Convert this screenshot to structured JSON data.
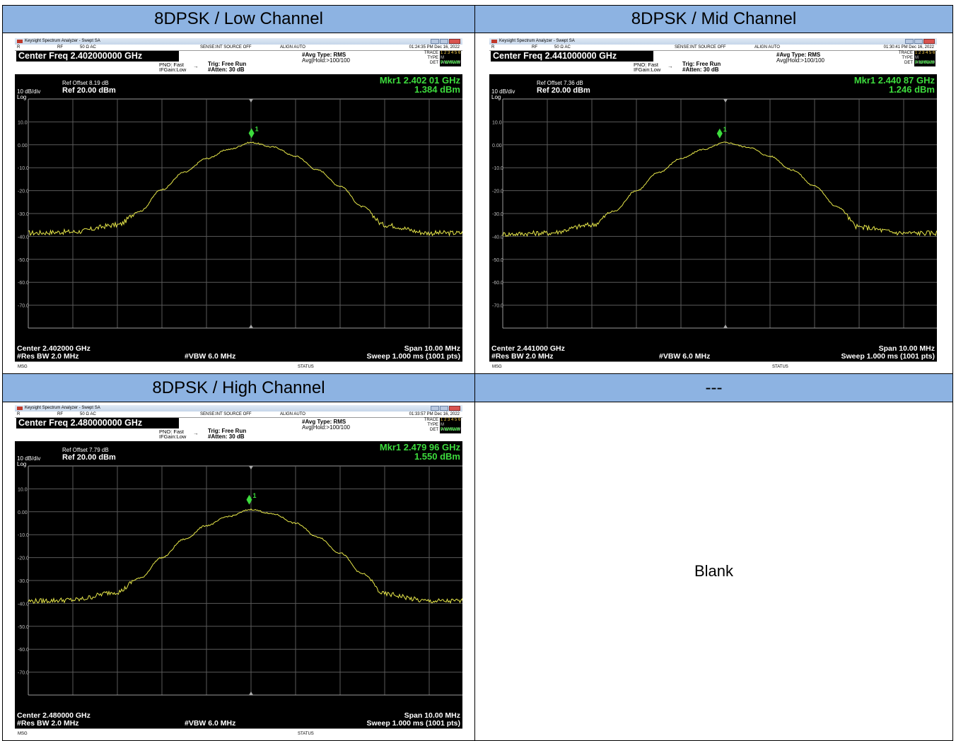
{
  "headers": {
    "low": "8DPSK / Low Channel",
    "mid": "8DPSK / Mid Channel",
    "high": "8DPSK / High Channel",
    "blank_header": "---",
    "blank_cell": "Blank"
  },
  "common": {
    "app_title": "Keysight Spectrum Analyzer - Swept SA",
    "row1_left": "R",
    "row1_rf": "RF",
    "row1_imp": "50 Ω  AC",
    "row1_sense": "SENSE:INT  SOURCE OFF",
    "row1_align": "ALIGN AUTO",
    "pno": "PNO: Fast",
    "ifgain": "IFGain:Low",
    "trig": "Trig: Free Run",
    "atten": "#Atten: 30 dB",
    "avg_type": "#Avg Type: RMS",
    "avg_hold": "Avg|Hold:>100/100",
    "trace_label": "TRACE",
    "trace_vals": "1 2 3 4 5 6",
    "type_label": "TYPE",
    "type_vals": "M WWWWW",
    "det_label": "DET",
    "det_vals": "P NNNNN",
    "scale": "10 dB/div",
    "log": "Log",
    "ref_level": "Ref 20.00 dBm",
    "res_bw": "#Res BW 2.0 MHz",
    "vbw": "#VBW 6.0 MHz",
    "span": "Span 10.00 MHz",
    "sweep": "Sweep  1.000 ms (1001 pts)",
    "msg": "MSG",
    "status": "STATUS",
    "marker_label": "1"
  },
  "plots": [
    {
      "key": "low",
      "time": "01:24:35 PM Dec 16, 2022",
      "center_freq_title": "Center Freq 2.402000000 GHz",
      "ref_offset": "Ref Offset 8.19 dB",
      "mkr_freq": "Mkr1 2.402 01 GHz",
      "mkr_val": "1.384 dBm",
      "center": "Center 2.402000 GHz"
    },
    {
      "key": "mid",
      "time": "01:30:41 PM Dec 16, 2022",
      "center_freq_title": "Center Freq 2.441000000 GHz",
      "ref_offset": "Ref Offset 7.36 dB",
      "mkr_freq": "Mkr1 2.440 87 GHz",
      "mkr_val": "1.246 dBm",
      "center": "Center 2.441000 GHz"
    },
    {
      "key": "high",
      "time": "01:33:57 PM Dec 16, 2022",
      "center_freq_title": "Center Freq 2.480000000 GHz",
      "ref_offset": "Ref Offset 7.79 dB",
      "mkr_freq": "Mkr1 2.479 96 GHz",
      "mkr_val": "1.550 dBm",
      "center": "Center 2.480000 GHz"
    }
  ],
  "chart_data": [
    {
      "type": "line",
      "title": "8DPSK / Low Channel",
      "y_tick_labels": [
        "10.0",
        "0.00",
        "-10.0",
        "-20.0",
        "-30.0",
        "-40.0",
        "-50.0",
        "-60.0",
        "-70.0"
      ],
      "ylim": [
        -80,
        20
      ],
      "xlim": [
        2.397,
        2.407
      ],
      "x_unit": "GHz",
      "y_unit": "dBm",
      "grid": true,
      "series": [
        {
          "color": "#e8e84a",
          "x": [
            2.397,
            2.398,
            2.399,
            2.3995,
            2.4,
            2.4005,
            2.401,
            2.4015,
            2.402,
            2.4025,
            2.403,
            2.4035,
            2.404,
            2.4045,
            2.405,
            2.406,
            2.407
          ],
          "y": [
            -38.5,
            -38,
            -35,
            -29,
            -19.5,
            -12,
            -6,
            -2,
            1,
            -1,
            -5,
            -11,
            -18,
            -27,
            -35,
            -38.5,
            -38.5
          ]
        }
      ],
      "marker": {
        "x": 2.40201,
        "y": 1.384
      }
    },
    {
      "type": "line",
      "title": "8DPSK / Mid Channel",
      "y_tick_labels": [
        "10.0",
        "0.00",
        "-10.0",
        "-20.0",
        "-30.0",
        "-40.0",
        "-50.0",
        "-60.0",
        "-70.0"
      ],
      "ylim": [
        -80,
        20
      ],
      "xlim": [
        2.436,
        2.446
      ],
      "x_unit": "GHz",
      "y_unit": "dBm",
      "grid": true,
      "series": [
        {
          "color": "#e8e84a",
          "x": [
            2.436,
            2.437,
            2.438,
            2.4385,
            2.439,
            2.4395,
            2.44,
            2.4405,
            2.441,
            2.4415,
            2.442,
            2.4425,
            2.443,
            2.4435,
            2.444,
            2.445,
            2.446
          ],
          "y": [
            -39,
            -38.5,
            -35,
            -29,
            -20,
            -12,
            -6,
            -2,
            1,
            -1,
            -5,
            -11,
            -18,
            -27,
            -36,
            -38.5,
            -38.5
          ]
        }
      ],
      "marker": {
        "x": 2.44087,
        "y": 1.246
      }
    },
    {
      "type": "line",
      "title": "8DPSK / High Channel",
      "y_tick_labels": [
        "10.0",
        "0.00",
        "-10.0",
        "-20.0",
        "-30.0",
        "-40.0",
        "-50.0",
        "-60.0",
        "-70.0"
      ],
      "ylim": [
        -80,
        20
      ],
      "xlim": [
        2.475,
        2.485
      ],
      "x_unit": "GHz",
      "y_unit": "dBm",
      "grid": true,
      "series": [
        {
          "color": "#e8e84a",
          "x": [
            2.475,
            2.476,
            2.477,
            2.4775,
            2.478,
            2.4785,
            2.479,
            2.4795,
            2.48,
            2.4805,
            2.481,
            2.4815,
            2.482,
            2.4825,
            2.483,
            2.484,
            2.485
          ],
          "y": [
            -39,
            -38.5,
            -35,
            -29,
            -20,
            -12,
            -6,
            -2,
            1,
            -1,
            -5,
            -11,
            -18,
            -27,
            -36,
            -39,
            -39
          ]
        }
      ],
      "marker": {
        "x": 2.47996,
        "y": 1.55
      }
    }
  ]
}
